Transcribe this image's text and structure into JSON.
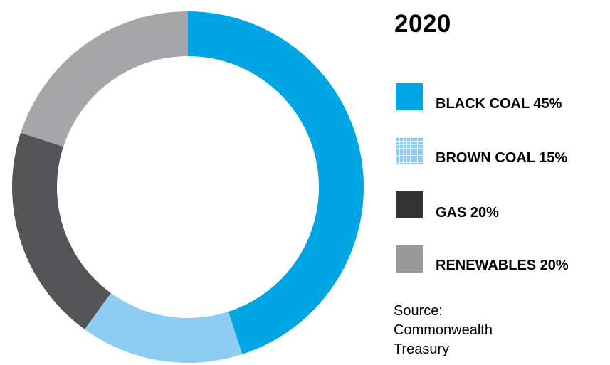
{
  "chart_data": {
    "type": "pie",
    "style": "donut",
    "title": "2020",
    "categories": [
      "BLACK COAL",
      "BROWN COAL",
      "GAS",
      "RENEWABLES"
    ],
    "values": [
      45,
      15,
      20,
      20
    ],
    "unit": "%",
    "legend": [
      {
        "label": "BLACK COAL 45%",
        "color": "#00a6e4",
        "pattern": "solid"
      },
      {
        "label": "BROWN COAL 15%",
        "color": "#8ecdf1",
        "pattern": "grid"
      },
      {
        "label": "GAS 20%",
        "color": "#333333",
        "pattern": "solid"
      },
      {
        "label": "RENEWABLES 20%",
        "color": "#999999",
        "pattern": "solid"
      }
    ],
    "slice_colors": [
      "#00a6e4",
      "#8ecdf1",
      "#555557",
      "#a6a6a8"
    ],
    "legend_position": "right",
    "source": [
      "Source:",
      "Commonwealth",
      "Treasury"
    ]
  }
}
